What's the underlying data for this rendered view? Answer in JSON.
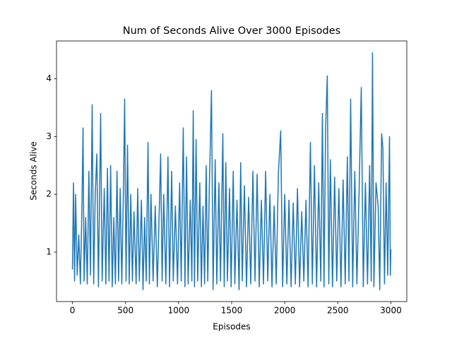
{
  "chart_data": {
    "type": "line",
    "title": "Num of Seconds Alive Over 3000 Episodes",
    "x_label": "Episodes",
    "y_label": "Seconds Alive",
    "xlim": [
      -150,
      3150
    ],
    "xticks": [
      0,
      500,
      1000,
      1500,
      2000,
      2500,
      3000
    ],
    "ylim": [
      0.145,
      4.655
    ],
    "yticks": [
      1,
      2,
      3,
      4
    ],
    "x": [
      0,
      10,
      20,
      30,
      45,
      60,
      75,
      90,
      100,
      110,
      125,
      140,
      155,
      170,
      186,
      200,
      215,
      230,
      245,
      266,
      280,
      300,
      315,
      330,
      345,
      360,
      375,
      390,
      405,
      420,
      435,
      450,
      465,
      480,
      492,
      505,
      519,
      535,
      550,
      565,
      580,
      600,
      615,
      630,
      650,
      665,
      680,
      695,
      712,
      725,
      740,
      760,
      780,
      800,
      831,
      845,
      860,
      880,
      900,
      915,
      935,
      950,
      970,
      990,
      1010,
      1025,
      1044,
      1060,
      1075,
      1090,
      1110,
      1125,
      1138,
      1150,
      1165,
      1180,
      1200,
      1215,
      1230,
      1245,
      1260,
      1275,
      1290,
      1310,
      1325,
      1345,
      1360,
      1380,
      1395,
      1417,
      1430,
      1445,
      1460,
      1480,
      1495,
      1515,
      1530,
      1550,
      1570,
      1585,
      1600,
      1620,
      1640,
      1660,
      1680,
      1700,
      1720,
      1740,
      1760,
      1780,
      1800,
      1820,
      1840,
      1860,
      1880,
      1900,
      1920,
      1940,
      1962,
      1980,
      2000,
      2020,
      2040,
      2060,
      2080,
      2100,
      2120,
      2140,
      2160,
      2180,
      2200,
      2220,
      2242,
      2260,
      2280,
      2300,
      2320,
      2340,
      2355,
      2370,
      2385,
      2401,
      2415,
      2430,
      2450,
      2470,
      2490,
      2510,
      2530,
      2550,
      2570,
      2590,
      2605,
      2621,
      2640,
      2660,
      2680,
      2700,
      2721,
      2740,
      2760,
      2780,
      2800,
      2815,
      2827,
      2840,
      2860,
      2880,
      2895,
      2913,
      2925,
      2940,
      2955,
      2970,
      2987,
      2995,
      3000
    ],
    "series": [
      {
        "name": "Seconds Alive",
        "color": "#1f77b4",
        "values": [
          0.7,
          2.2,
          0.5,
          2.0,
          0.6,
          1.3,
          0.45,
          1.8,
          3.15,
          0.5,
          1.6,
          0.45,
          2.4,
          0.6,
          3.55,
          0.45,
          2.0,
          2.7,
          0.4,
          3.4,
          0.5,
          2.1,
          0.45,
          2.45,
          0.5,
          2.5,
          0.4,
          1.6,
          0.45,
          2.4,
          0.5,
          2.1,
          0.45,
          2.0,
          3.65,
          0.5,
          2.85,
          0.45,
          2.0,
          0.5,
          1.7,
          0.45,
          2.1,
          0.5,
          1.9,
          0.35,
          1.6,
          0.5,
          2.9,
          0.45,
          2.0,
          0.5,
          1.8,
          0.4,
          2.7,
          0.5,
          2.0,
          0.45,
          2.65,
          0.4,
          2.4,
          0.5,
          1.8,
          0.45,
          2.2,
          0.5,
          3.15,
          0.4,
          2.65,
          0.45,
          1.9,
          0.5,
          3.45,
          0.4,
          2.95,
          0.5,
          2.2,
          0.4,
          1.8,
          0.45,
          2.5,
          0.5,
          2.15,
          3.8,
          0.35,
          2.6,
          0.45,
          2.2,
          0.5,
          3.05,
          0.4,
          2.55,
          0.5,
          2.1,
          0.4,
          2.4,
          0.45,
          1.9,
          0.35,
          2.55,
          0.5,
          2.15,
          0.4,
          1.95,
          0.45,
          2.4,
          0.5,
          2.35,
          0.4,
          1.9,
          0.45,
          2.4,
          0.5,
          2.0,
          0.4,
          1.8,
          0.45,
          2.35,
          3.1,
          0.4,
          2.0,
          0.45,
          1.9,
          0.4,
          1.85,
          0.45,
          2.1,
          0.4,
          1.7,
          0.5,
          1.9,
          0.4,
          2.9,
          0.45,
          2.5,
          0.4,
          2.2,
          0.5,
          3.4,
          0.4,
          3.15,
          4.05,
          0.45,
          2.6,
          0.4,
          2.3,
          0.5,
          2.1,
          0.4,
          2.25,
          0.45,
          2.65,
          0.5,
          3.65,
          0.4,
          2.4,
          0.45,
          2.0,
          3.85,
          0.4,
          2.2,
          0.45,
          2.5,
          0.5,
          4.45,
          0.4,
          2.2,
          1.8,
          0.35,
          3.05,
          2.8,
          0.45,
          2.2,
          0.6,
          3.0,
          0.6,
          1.05
        ]
      }
    ]
  }
}
